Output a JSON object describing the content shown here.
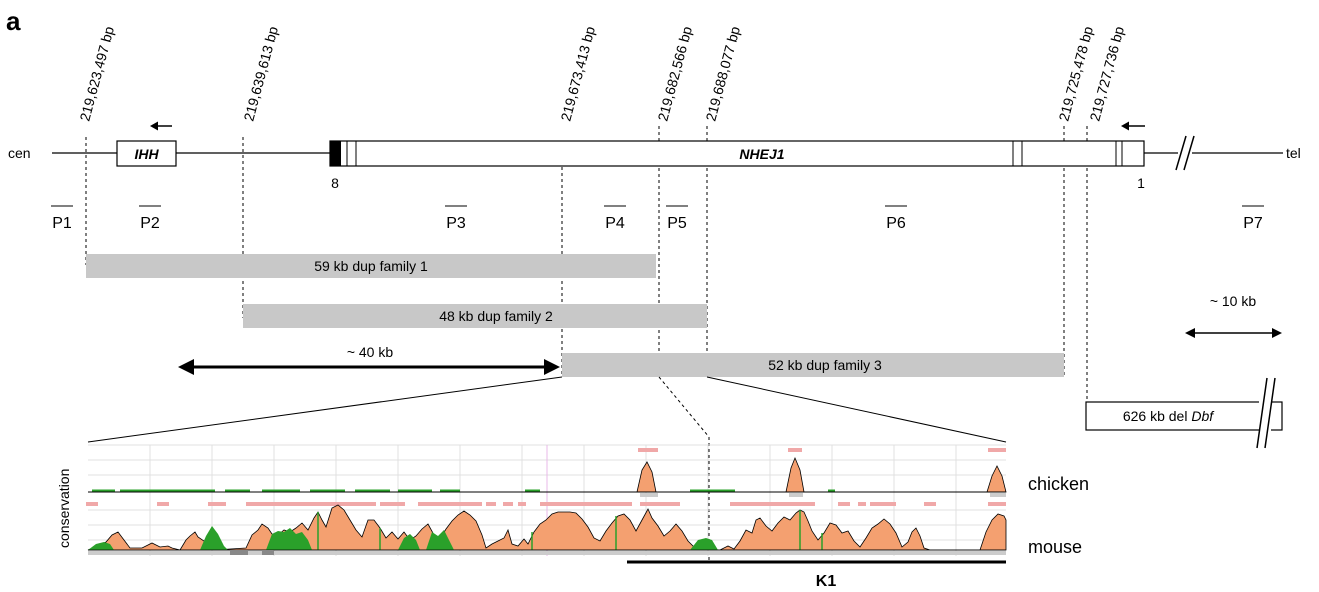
{
  "panel_label": "a",
  "chromosome": {
    "left_end": "cen",
    "right_end": "tel"
  },
  "coordinates": [
    "219,623,497 bp",
    "219,639,613 bp",
    "219,673,413 bp",
    "219,682,566 bp",
    "219,688,077 bp",
    "219,725,478 bp",
    "219,727,736 bp"
  ],
  "genes": {
    "ihh": "IHH",
    "nhej1": "NHEJ1"
  },
  "exon_labels": {
    "first": "8",
    "last": "1"
  },
  "probes": [
    "P1",
    "P2",
    "P3",
    "P4",
    "P5",
    "P6",
    "P7"
  ],
  "dup_families": [
    "59 kb dup family 1",
    "48 kb dup family 2",
    "52 kb dup family 3"
  ],
  "scale_labels": {
    "large": "~ 40 kb",
    "small": "~ 10 kb"
  },
  "deletion": {
    "prefix": "626 kb del ",
    "name": "Dbf"
  },
  "conservation": {
    "axis_label": "conservation",
    "tracks": [
      "chicken",
      "mouse"
    ],
    "region_label": "K1"
  },
  "colors": {
    "dup_bar": "#c8c8c8",
    "peak_fill": "#f4a070",
    "green": "#2aa02a",
    "pink": "#f0a8a8",
    "grid": "#e0e0e0"
  }
}
